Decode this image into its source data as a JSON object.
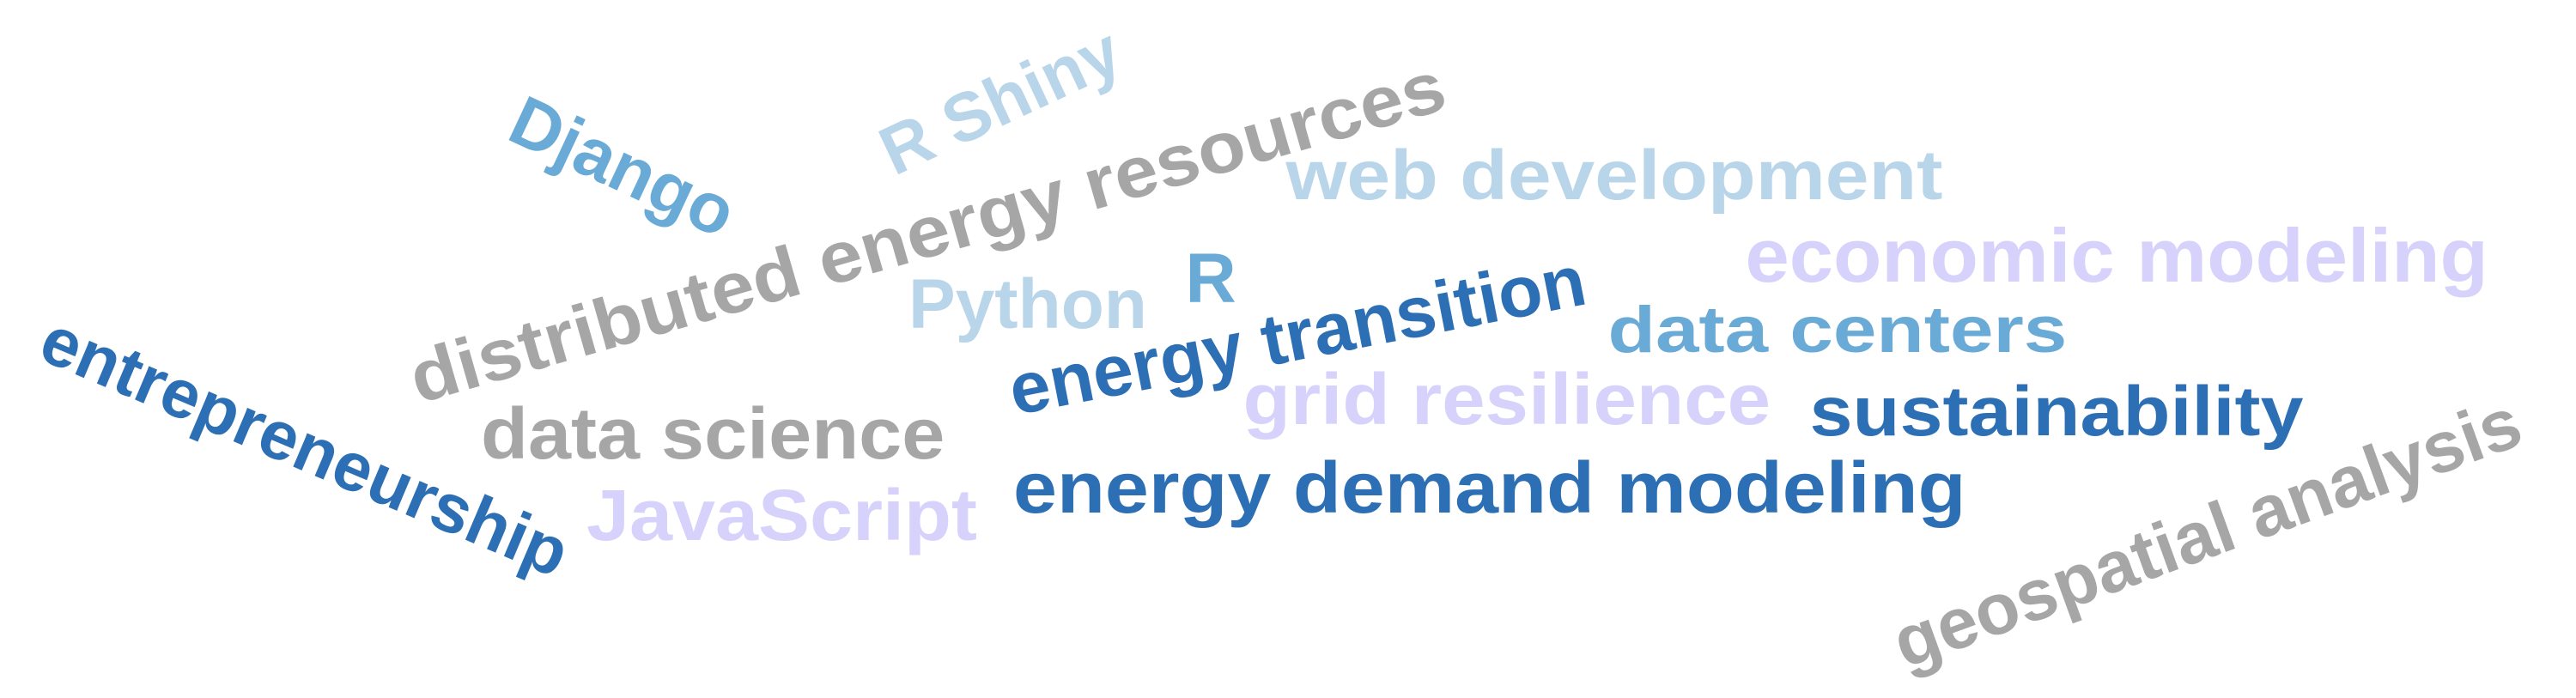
{
  "palette": {
    "dark_blue": "#2c6fb4",
    "mid_blue": "#6aaad6",
    "light_blue": "#b9d5e9",
    "lavender": "#d6d2fb",
    "gray": "#a6a6a6"
  },
  "words": [
    {
      "id": "django",
      "text": "Django",
      "color": "#6aaad6"
    },
    {
      "id": "r-shiny",
      "text": "R Shiny",
      "color": "#b9d5e9"
    },
    {
      "id": "distributed-energy-resources",
      "text": "distributed energy resources",
      "color": "#a6a6a6"
    },
    {
      "id": "web-development",
      "text": "web development",
      "color": "#b9d5e9"
    },
    {
      "id": "economic-modeling",
      "text": "economic modeling",
      "color": "#d6d2fb"
    },
    {
      "id": "python",
      "text": "Python",
      "color": "#b9d5e9"
    },
    {
      "id": "r",
      "text": "R",
      "color": "#6aaad6"
    },
    {
      "id": "energy-transition",
      "text": "energy transition",
      "color": "#2c6fb4"
    },
    {
      "id": "data-centers",
      "text": "data centers",
      "color": "#6aaad6"
    },
    {
      "id": "entrepreneurship",
      "text": "entrepreneurship",
      "color": "#2c6fb4"
    },
    {
      "id": "grid-resilience",
      "text": "grid resilience",
      "color": "#d6d2fb"
    },
    {
      "id": "sustainability",
      "text": "sustainability",
      "color": "#2c6fb4"
    },
    {
      "id": "data-science",
      "text": "data science",
      "color": "#a6a6a6"
    },
    {
      "id": "geospatial-analysis",
      "text": "geospatial analysis",
      "color": "#a6a6a6"
    },
    {
      "id": "javascript",
      "text": "JavaScript",
      "color": "#d6d2fb"
    },
    {
      "id": "energy-demand-modeling",
      "text": "energy demand modeling",
      "color": "#2c6fb4"
    }
  ]
}
